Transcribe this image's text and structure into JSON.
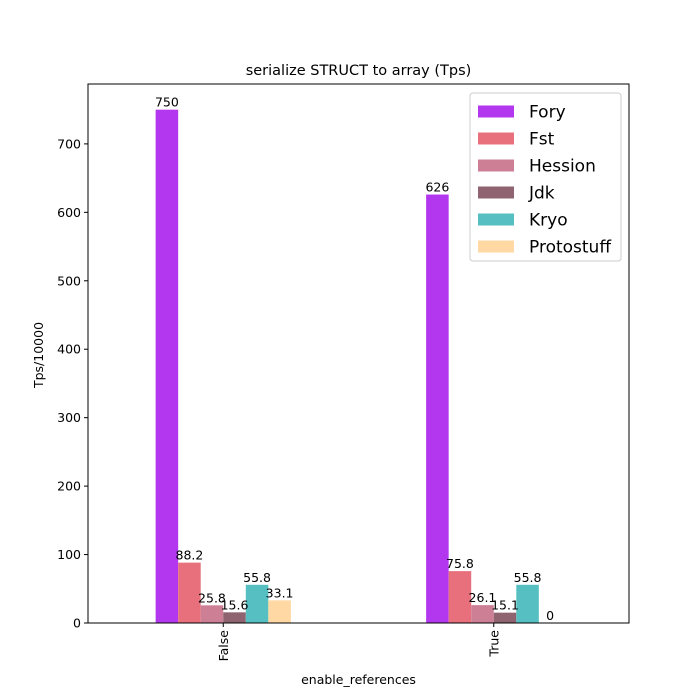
{
  "chart_data": {
    "type": "bar",
    "title": "serialize STRUCT to array (Tps)",
    "xlabel": "enable_references",
    "ylabel": "Tps/10000",
    "categories": [
      "False",
      "True"
    ],
    "ylim": [
      0,
      787.5
    ],
    "yticks": [
      0,
      100,
      200,
      300,
      400,
      500,
      600,
      700
    ],
    "grid": false,
    "legend_position": "top-right",
    "series": [
      {
        "name": "Fory",
        "color": "#b337ee",
        "values": [
          750,
          626
        ],
        "labels": [
          "750",
          "626"
        ]
      },
      {
        "name": "Fst",
        "color": "#e8707d",
        "values": [
          88.2,
          75.8
        ],
        "labels": [
          "88.2",
          "75.8"
        ]
      },
      {
        "name": "Hession",
        "color": "#cd7f95",
        "values": [
          25.8,
          26.1
        ],
        "labels": [
          "25.8",
          "26.1"
        ]
      },
      {
        "name": "Jdk",
        "color": "#8f6470",
        "values": [
          15.6,
          15.1
        ],
        "labels": [
          "15.6",
          "15.1"
        ]
      },
      {
        "name": "Kryo",
        "color": "#55bfc2",
        "values": [
          55.8,
          55.8
        ],
        "labels": [
          "55.8",
          "55.8"
        ]
      },
      {
        "name": "Protostuff",
        "color": "#ffd8a3",
        "values": [
          33.1,
          0
        ],
        "labels": [
          "33.1",
          "0"
        ]
      }
    ]
  }
}
